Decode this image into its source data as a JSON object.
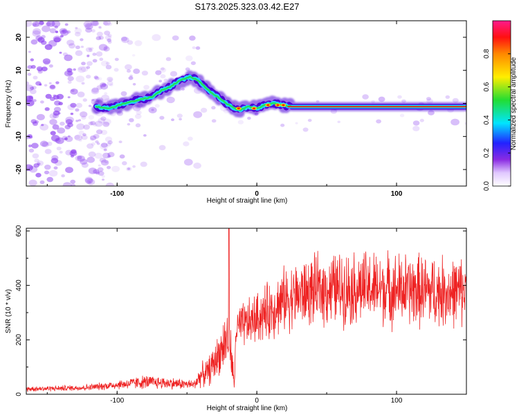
{
  "title": "S173.2025.323.03.42.E27",
  "colors": {
    "snr_line": "#ee2222",
    "ridge_outer": "#4b00d8",
    "ridge_mid": "#1fd7ff",
    "ridge_inner": "#25e05a",
    "ridge_core": "#ff1010",
    "noise": "#8a3cf0"
  },
  "chart_data": [
    {
      "type": "heatmap",
      "name": "spectrogram",
      "xlabel": "Height of straight line (km)",
      "ylabel": "Frequency (Hz)",
      "xlim": [
        -165,
        150
      ],
      "ylim": [
        -25,
        25
      ],
      "xticks": [
        -100,
        0,
        100
      ],
      "xtick_labels": [
        "-100",
        "0",
        "100"
      ],
      "yticks": [
        -20,
        -10,
        0,
        10,
        20
      ],
      "ytick_labels": [
        "-20",
        "-10",
        "0",
        "10",
        "20"
      ],
      "colorbar": {
        "label": "Normalized spectral amplitude",
        "range": [
          0,
          1
        ],
        "ticks": [
          0.0,
          0.2,
          0.4,
          0.6,
          0.8
        ],
        "tick_labels": [
          "0.0",
          "0.2",
          "0.4",
          "0.6",
          "0.8"
        ]
      },
      "ridge": {
        "x": [
          -115,
          -105,
          -95,
          -85,
          -75,
          -68,
          -62,
          -55,
          -48,
          -42,
          -37,
          -32,
          -28,
          -22,
          -16,
          -12,
          -6,
          0,
          6,
          12,
          18,
          25,
          150
        ],
        "freq_hz": [
          -1,
          -1.5,
          0,
          1,
          2,
          4,
          5,
          7,
          8,
          7,
          5,
          3,
          2,
          0,
          -1.5,
          -2,
          -1,
          -1.5,
          -0.5,
          0,
          -0.5,
          -1,
          -1
        ]
      }
    },
    {
      "type": "line",
      "name": "snr",
      "xlabel": "Height of straight line (km)",
      "ylabel": "SNR (10 * v/v)",
      "xlim": [
        -165,
        150
      ],
      "ylim": [
        0,
        610
      ],
      "xticks": [
        -100,
        0,
        100
      ],
      "xtick_labels": [
        "-100",
        "0",
        "100"
      ],
      "yticks": [
        0,
        200,
        400,
        600
      ],
      "ytick_labels": [
        "0",
        "200",
        "400",
        "600"
      ],
      "envelope": {
        "x": [
          -165,
          -140,
          -120,
          -100,
          -80,
          -60,
          -45,
          -40,
          -35,
          -30,
          -25,
          -20,
          -16,
          -15,
          -10,
          0,
          10,
          20,
          40,
          60,
          80,
          100,
          120,
          140,
          150
        ],
        "mean": [
          20,
          22,
          25,
          35,
          45,
          40,
          35,
          70,
          80,
          120,
          170,
          220,
          30,
          240,
          250,
          280,
          310,
          350,
          380,
          390,
          390,
          385,
          380,
          375,
          380
        ],
        "spread": [
          12,
          12,
          14,
          20,
          30,
          25,
          20,
          50,
          60,
          80,
          100,
          150,
          25,
          90,
          100,
          110,
          130,
          140,
          150,
          160,
          160,
          160,
          160,
          150,
          150
        ]
      }
    }
  ]
}
